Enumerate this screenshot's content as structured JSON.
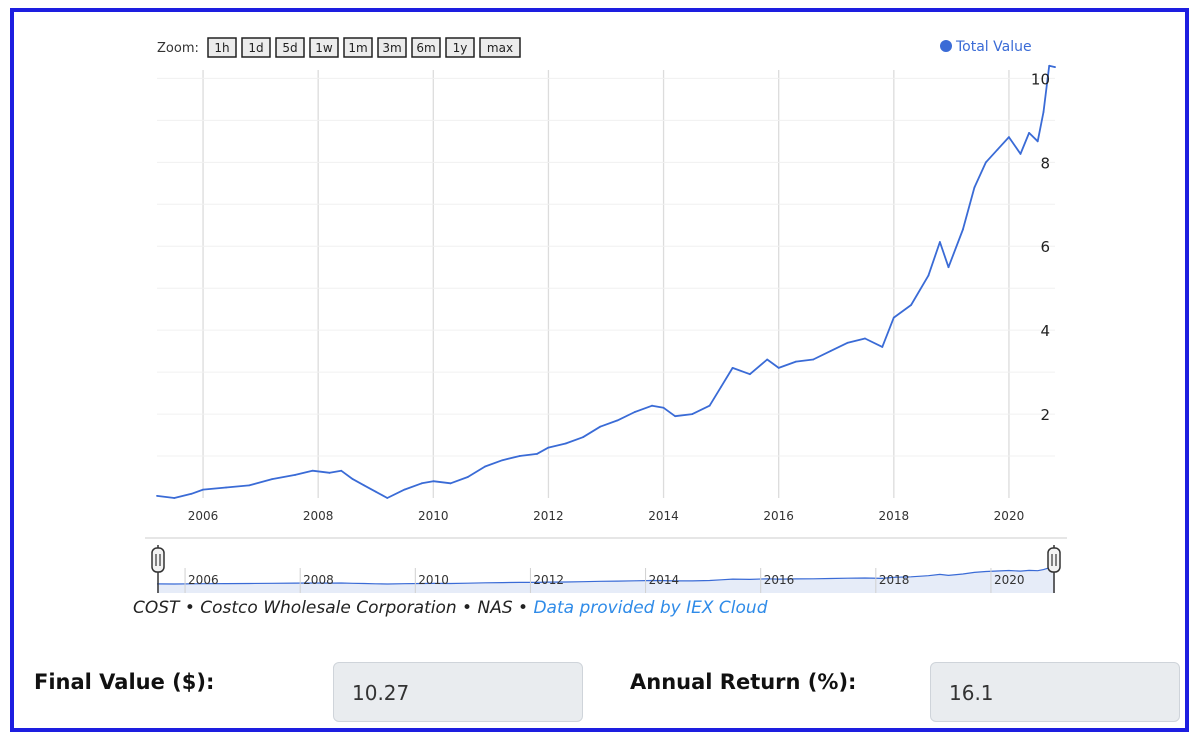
{
  "colors": {
    "frame": "#1d1ee0",
    "series": "#3a6bd6",
    "link": "#2f8be8"
  },
  "zoom": {
    "label": "Zoom:",
    "buttons": [
      "1h",
      "1d",
      "5d",
      "1w",
      "1m",
      "3m",
      "6m",
      "1y",
      "max"
    ]
  },
  "legend": {
    "label": "Total Value",
    "marker": "circle"
  },
  "credits": {
    "text": "COST • Costco Wholesale Corporation • NAS • ",
    "link_text": "Data provided by IEX Cloud"
  },
  "fields": {
    "final_value": {
      "label": "Final Value ($):",
      "value": "10.27"
    },
    "annual_return": {
      "label": "Annual Return (%):",
      "value": "16.1"
    }
  },
  "chart_data": {
    "type": "line",
    "title": "",
    "xlabel": "",
    "ylabel": "",
    "x_ticks": [
      "2006",
      "2008",
      "2010",
      "2012",
      "2014",
      "2016",
      "2018",
      "2020"
    ],
    "y_ticks": [
      "2",
      "4",
      "6",
      "8",
      "10"
    ],
    "xlim": [
      2005.2,
      2020.8
    ],
    "ylim": [
      0,
      10.2
    ],
    "grid": true,
    "legend_position": "top-right",
    "navigator_ticks": [
      "2006",
      "2008",
      "2010",
      "2012",
      "2014",
      "2016",
      "2018",
      "2020"
    ],
    "series": [
      {
        "name": "Total Value",
        "x": [
          2005.2,
          2005.5,
          2005.8,
          2006.0,
          2006.4,
          2006.8,
          2007.2,
          2007.6,
          2007.9,
          2008.2,
          2008.4,
          2008.6,
          2008.8,
          2009.0,
          2009.2,
          2009.5,
          2009.8,
          2010.0,
          2010.3,
          2010.6,
          2010.9,
          2011.2,
          2011.5,
          2011.8,
          2012.0,
          2012.3,
          2012.6,
          2012.9,
          2013.2,
          2013.5,
          2013.8,
          2014.0,
          2014.2,
          2014.5,
          2014.8,
          2015.0,
          2015.2,
          2015.5,
          2015.8,
          2016.0,
          2016.3,
          2016.6,
          2016.9,
          2017.2,
          2017.5,
          2017.8,
          2018.0,
          2018.3,
          2018.6,
          2018.8,
          2018.95,
          2019.2,
          2019.4,
          2019.6,
          2019.8,
          2020.0,
          2020.2,
          2020.35,
          2020.5,
          2020.6,
          2020.7,
          2020.8
        ],
        "y": [
          0.05,
          0.0,
          0.1,
          0.2,
          0.25,
          0.3,
          0.45,
          0.55,
          0.65,
          0.6,
          0.65,
          0.45,
          0.3,
          0.15,
          0.0,
          0.2,
          0.35,
          0.4,
          0.35,
          0.5,
          0.75,
          0.9,
          1.0,
          1.05,
          1.2,
          1.3,
          1.45,
          1.7,
          1.85,
          2.05,
          2.2,
          2.15,
          1.95,
          2.0,
          2.2,
          2.65,
          3.1,
          2.95,
          3.3,
          3.1,
          3.25,
          3.3,
          3.5,
          3.7,
          3.8,
          3.6,
          4.3,
          4.6,
          5.3,
          6.1,
          5.5,
          6.4,
          7.4,
          8.0,
          8.3,
          8.6,
          8.2,
          8.7,
          8.5,
          9.2,
          10.3,
          10.27
        ]
      }
    ]
  }
}
